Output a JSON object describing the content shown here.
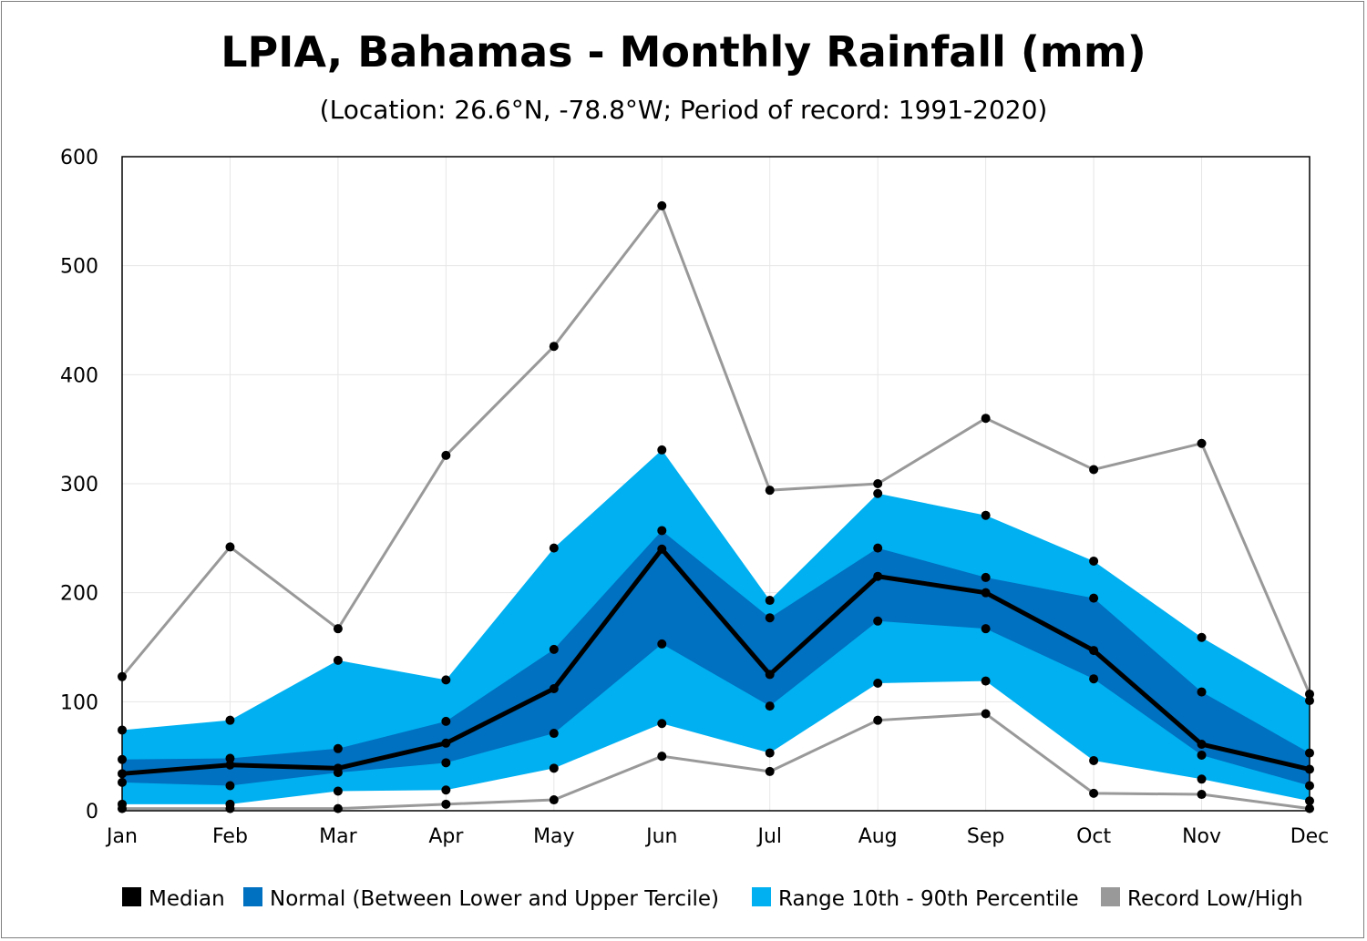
{
  "title": "LPIA, Bahamas - Monthly Rainfall (mm)",
  "subtitle": "(Location: 26.6°N, -78.8°W; Period of record: 1991-2020)",
  "chart_data": {
    "type": "area",
    "title": "LPIA, Bahamas - Monthly Rainfall (mm)",
    "subtitle": "(Location: 26.6°N, -78.8°W; Period of record: 1991-2020)",
    "categories": [
      "Jan",
      "Feb",
      "Mar",
      "Apr",
      "May",
      "Jun",
      "Jul",
      "Aug",
      "Sep",
      "Oct",
      "Nov",
      "Dec"
    ],
    "ylim": [
      0,
      600
    ],
    "yticks": [
      0,
      100,
      200,
      300,
      400,
      500,
      600
    ],
    "grid": true,
    "legend_position": "bottom",
    "series": [
      {
        "name": "Record Low/High",
        "color": "#999999",
        "low": [
          2,
          2,
          2,
          6,
          10,
          50,
          36,
          83,
          89,
          16,
          15,
          2
        ],
        "high": [
          123,
          242,
          167,
          326,
          426,
          555,
          294,
          300,
          360,
          313,
          337,
          107
        ]
      },
      {
        "name": "Range 10th - 90th Percentile",
        "color": "#00b0f0",
        "low": [
          6,
          6,
          18,
          19,
          39,
          80,
          53,
          117,
          119,
          46,
          29,
          9
        ],
        "high": [
          74,
          83,
          138,
          120,
          241,
          331,
          193,
          291,
          271,
          229,
          159,
          101
        ]
      },
      {
        "name": "Normal (Between Lower and Upper Tercile)",
        "color": "#0070c0",
        "low": [
          26,
          23,
          35,
          44,
          71,
          153,
          96,
          174,
          167,
          121,
          51,
          23
        ],
        "high": [
          47,
          48,
          57,
          82,
          148,
          257,
          177,
          241,
          214,
          195,
          109,
          53
        ]
      },
      {
        "name": "Median",
        "color": "#000000",
        "values": [
          34,
          42,
          39,
          62,
          112,
          240,
          125,
          215,
          200,
          147,
          61,
          38
        ]
      }
    ]
  }
}
